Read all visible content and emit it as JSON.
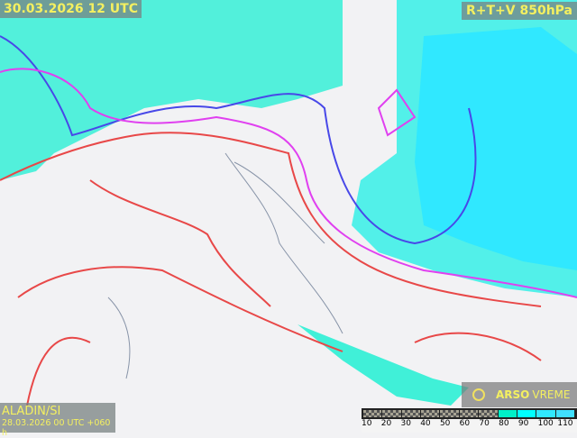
{
  "header": {
    "valid_time": "30.03.2026 12 UTC",
    "product": "R+T+V 850hPa"
  },
  "model": {
    "name": "ALADIN/SI",
    "run": "28.03.2026 00 UTC +060 h"
  },
  "brand": {
    "icon": "arso-logo-icon",
    "arso": "ARSO",
    "vreme": "VREME"
  },
  "legend": {
    "values": [
      "10",
      "20",
      "30",
      "40",
      "50",
      "60",
      "70",
      "80",
      "90",
      "100",
      "110"
    ],
    "colors": [
      "checker",
      "checker",
      "checker",
      "checker",
      "checker",
      "checker",
      "checker",
      "#00f0c8",
      "#00ffff",
      "#30e8ff",
      "#40e0ff"
    ]
  },
  "map": {
    "colors": {
      "humidity": "#40f0e0",
      "isotherm_warm": "#e84040",
      "isotherm_zero": "#e040f0",
      "isotherm_cold": "#4040e0",
      "land": "#f2f2f4"
    }
  }
}
